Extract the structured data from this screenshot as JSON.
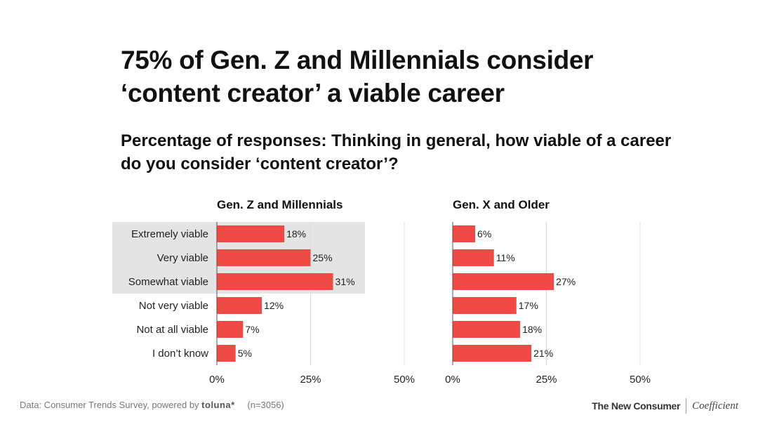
{
  "title": "75% of Gen. Z and Millennials consider ‘content creator’ a viable career",
  "subtitle": "Percentage of responses: Thinking in general, how viable of a career do you consider ‘content creator’?",
  "footer": {
    "source_prefix": "Data: Consumer Trends Survey, powered by",
    "source_brand": "toluna*",
    "sample": "(n=3056)",
    "publisher": "The New Consumer",
    "partner": "Coefficient"
  },
  "colors": {
    "bar": "#f04a46",
    "highlight": "#e4e4e4",
    "grid": "#dcdcdc",
    "axis": "#555555"
  },
  "chart_data": [
    {
      "type": "bar",
      "orientation": "horizontal",
      "title": "Gen. Z and Millennials",
      "categories": [
        "Extremely viable",
        "Very viable",
        "Somewhat viable",
        "Not very viable",
        "Not at all viable",
        "I don’t know"
      ],
      "values": [
        18,
        25,
        31,
        12,
        7,
        5
      ],
      "value_labels": [
        "18%",
        "25%",
        "31%",
        "12%",
        "7%",
        "5%"
      ],
      "highlighted_categories": [
        "Extremely viable",
        "Very viable",
        "Somewhat viable"
      ],
      "xlim": [
        0,
        50
      ],
      "xticks": [
        0,
        25,
        50
      ],
      "xtick_labels": [
        "0%",
        "25%",
        "50%"
      ]
    },
    {
      "type": "bar",
      "orientation": "horizontal",
      "title": "Gen. X and Older",
      "categories": [
        "Extremely viable",
        "Very viable",
        "Somewhat viable",
        "Not very viable",
        "Not at all viable",
        "I don’t know"
      ],
      "values": [
        6,
        11,
        27,
        17,
        18,
        21
      ],
      "value_labels": [
        "6%",
        "11%",
        "27%",
        "17%",
        "18%",
        "21%"
      ],
      "xlim": [
        0,
        50
      ],
      "xticks": [
        0,
        25,
        50
      ],
      "xtick_labels": [
        "0%",
        "25%",
        "50%"
      ]
    }
  ]
}
